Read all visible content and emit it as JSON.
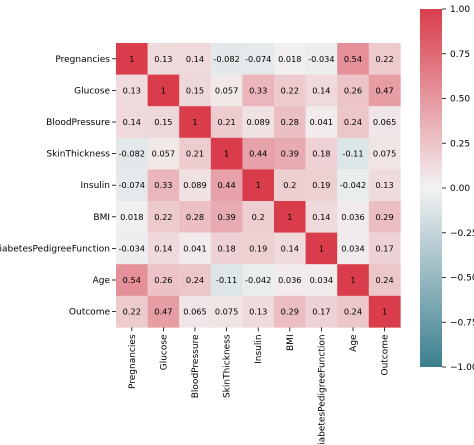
{
  "chart_data": {
    "type": "heatmap",
    "categories": [
      "Pregnancies",
      "Glucose",
      "BloodPressure",
      "SkinThickness",
      "Insulin",
      "BMI",
      "DiabetesPedigreeFunction",
      "Age",
      "Outcome"
    ],
    "matrix": [
      [
        1,
        0.13,
        0.14,
        -0.082,
        -0.074,
        0.018,
        -0.034,
        0.54,
        0.22
      ],
      [
        0.13,
        1,
        0.15,
        0.057,
        0.33,
        0.22,
        0.14,
        0.26,
        0.47
      ],
      [
        0.14,
        0.15,
        1,
        0.21,
        0.089,
        0.28,
        0.041,
        0.24,
        0.065
      ],
      [
        -0.082,
        0.057,
        0.21,
        1,
        0.44,
        0.39,
        0.18,
        -0.11,
        0.075
      ],
      [
        -0.074,
        0.33,
        0.089,
        0.44,
        1,
        0.2,
        0.19,
        -0.042,
        0.13
      ],
      [
        0.018,
        0.22,
        0.28,
        0.39,
        0.2,
        1,
        0.14,
        0.036,
        0.29
      ],
      [
        -0.034,
        0.14,
        0.041,
        0.18,
        0.19,
        0.14,
        1,
        0.034,
        0.17
      ],
      [
        0.54,
        0.26,
        0.24,
        -0.11,
        -0.042,
        0.036,
        0.034,
        1,
        0.24
      ],
      [
        0.22,
        0.47,
        0.065,
        0.075,
        0.13,
        0.29,
        0.17,
        0.24,
        1
      ]
    ],
    "labels": [
      [
        "1",
        "0.13",
        "0.14",
        "-0.082",
        "-0.074",
        "0.018",
        "-0.034",
        "0.54",
        "0.22"
      ],
      [
        "0.13",
        "1",
        "0.15",
        "0.057",
        "0.33",
        "0.22",
        "0.14",
        "0.26",
        "0.47"
      ],
      [
        "0.14",
        "0.15",
        "1",
        "0.21",
        "0.089",
        "0.28",
        "0.041",
        "0.24",
        "0.065"
      ],
      [
        "-0.082",
        "0.057",
        "0.21",
        "1",
        "0.44",
        "0.39",
        "0.18",
        "-0.11",
        "0.075"
      ],
      [
        "-0.074",
        "0.33",
        "0.089",
        "0.44",
        "1",
        "0.2",
        "0.19",
        "-0.042",
        "0.13"
      ],
      [
        "0.018",
        "0.22",
        "0.28",
        "0.39",
        "0.2",
        "1",
        "0.14",
        "0.036",
        "0.29"
      ],
      [
        "-0.034",
        "0.14",
        "0.041",
        "0.18",
        "0.19",
        "0.14",
        "1",
        "0.034",
        "0.17"
      ],
      [
        "0.54",
        "0.26",
        "0.24",
        "-0.11",
        "-0.042",
        "0.036",
        "0.034",
        "1",
        "0.24"
      ],
      [
        "0.22",
        "0.47",
        "0.065",
        "0.075",
        "0.13",
        "0.29",
        "0.17",
        "0.24",
        "1"
      ]
    ],
    "colorbar": {
      "range": [
        -1,
        1
      ],
      "ticks": [
        -1,
        -0.75,
        -0.5,
        -0.25,
        0,
        0.25,
        0.5,
        0.75,
        1
      ],
      "tick_labels": [
        "−1.00",
        "−0.75",
        "−0.50",
        "−0.25",
        "0.00",
        "0.25",
        "0.50",
        "0.75",
        "1.00"
      ],
      "colors": {
        "negative": "#3b7f8f",
        "center": "#f2f2f2",
        "positive": "#d93d4b"
      }
    }
  }
}
